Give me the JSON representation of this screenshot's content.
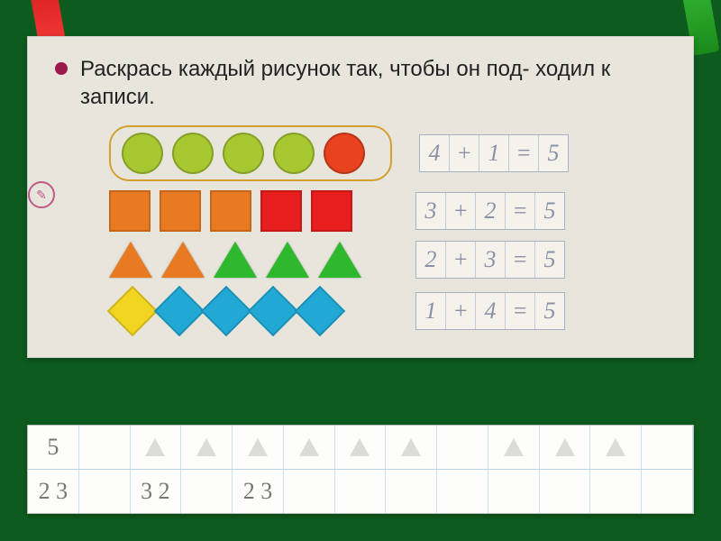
{
  "instruction": "Раскрась каждый рисунок так, чтобы он под-\nходил к записи.",
  "rows": [
    {
      "shape": "circle",
      "boxed": true,
      "colors": [
        "#a8c832",
        "#a8c832",
        "#a8c832",
        "#a8c832",
        "#e8431e"
      ],
      "equation": [
        "4",
        "+",
        "1",
        "=",
        "5"
      ]
    },
    {
      "shape": "square",
      "boxed": false,
      "colors": [
        "#e87a22",
        "#e87a22",
        "#e87a22",
        "#e81e1e",
        "#e81e1e"
      ],
      "equation": [
        "3",
        "+",
        "2",
        "=",
        "5"
      ]
    },
    {
      "shape": "triangle",
      "boxed": false,
      "colors": [
        "#e87a22",
        "#e87a22",
        "#2eb82e",
        "#2eb82e",
        "#2eb82e"
      ],
      "equation": [
        "2",
        "+",
        "3",
        "=",
        "5"
      ]
    },
    {
      "shape": "diamond",
      "boxed": false,
      "colors": [
        "#f2d422",
        "#22a8d4",
        "#22a8d4",
        "#22a8d4",
        "#22a8d4"
      ],
      "equation": [
        "1",
        "+",
        "4",
        "=",
        "5"
      ]
    }
  ],
  "practice_row1": [
    "5",
    "",
    "tri",
    "tri",
    "tri",
    "tri",
    "tri",
    "tri",
    "",
    "tri",
    "tri",
    "tri"
  ],
  "practice_row2_pairs": [
    "2 3",
    "",
    "3 2",
    "",
    "2 3"
  ],
  "background": "#0d5c1e",
  "worksheet_bg": "#e8e6dc",
  "bullet_color": "#9a1b4b"
}
